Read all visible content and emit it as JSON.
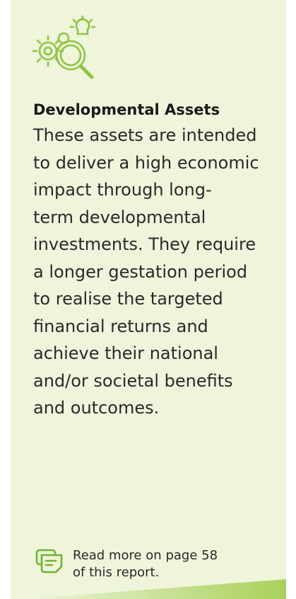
{
  "card": {
    "title": "Developmental Assets",
    "body_lines": [
      "These assets are intended",
      "to deliver a high economic",
      "impact through long-",
      "term developmental",
      "investments. They require",
      "a longer gestation period",
      "to realise the targeted",
      "financial returns and",
      "achieve their national",
      "and/or societal benefits",
      "and outcomes."
    ],
    "footer_lines": [
      "Read more on page 58",
      "of this report."
    ]
  }
}
